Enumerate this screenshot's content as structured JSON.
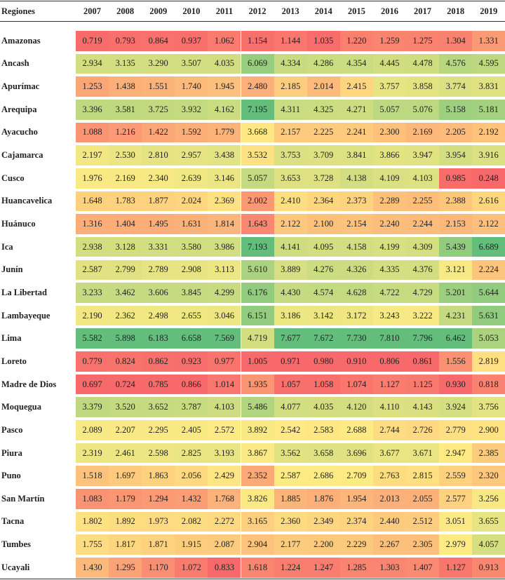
{
  "table": {
    "header": [
      "Regiones",
      "2007",
      "2008",
      "2009",
      "2010",
      "2011",
      "2012",
      "2013",
      "2014",
      "2015",
      "2016",
      "2017",
      "2018",
      "2019"
    ],
    "rows": [
      [
        "Amazonas",
        "0.719",
        "0.793",
        "0.864",
        "0.937",
        "1.062",
        "1.154",
        "1.144",
        "1.035",
        "1.220",
        "1.259",
        "1.275",
        "1.304",
        "1.331"
      ],
      [
        "Ancash",
        "2.934",
        "3.135",
        "3.290",
        "3.507",
        "4.035",
        "6.069",
        "4.334",
        "4.286",
        "4.354",
        "4.445",
        "4.478",
        "4.576",
        "4.595"
      ],
      [
        "Apurímac",
        "1.253",
        "1.438",
        "1.551",
        "1.740",
        "1.945",
        "2.480",
        "2.185",
        "2.014",
        "2.415",
        "3.757",
        "3.858",
        "3.774",
        "3.831"
      ],
      [
        "Arequipa",
        "3.396",
        "3.581",
        "3.725",
        "3.932",
        "4.162",
        "7.195",
        "4.311",
        "4.325",
        "4.271",
        "5.057",
        "5.076",
        "5.158",
        "5.181"
      ],
      [
        "Ayacucho",
        "1.088",
        "1.216",
        "1.422",
        "1.592",
        "1.779",
        "3.668",
        "2.157",
        "2.225",
        "2.241",
        "2.300",
        "2.169",
        "2.205",
        "2.192"
      ],
      [
        "Cajamarca",
        "2.197",
        "2.530",
        "2.810",
        "2.957",
        "3.438",
        "3.532",
        "3.753",
        "3.709",
        "3.841",
        "3.866",
        "3.947",
        "3.954",
        "3.916"
      ],
      [
        "Cusco",
        "1.976",
        "2.169",
        "2.340",
        "2.639",
        "3.146",
        "5.057",
        "3.653",
        "3.728",
        "4.138",
        "4.109",
        "4.103",
        "0.985",
        "0.248"
      ],
      [
        "Huancavelica",
        "1.648",
        "1.783",
        "1.877",
        "2.024",
        "2.369",
        "2.002",
        "2.410",
        "2.364",
        "2.373",
        "2.289",
        "2.255",
        "2.388",
        "2.616"
      ],
      [
        "Huánuco",
        "1.316",
        "1.404",
        "1.495",
        "1.631",
        "1.814",
        "1.643",
        "2.122",
        "2.100",
        "2.154",
        "2.240",
        "2.244",
        "2.153",
        "2.122"
      ],
      [
        "Ica",
        "2.938",
        "3.128",
        "3.331",
        "3.580",
        "3.986",
        "7.193",
        "4.141",
        "4.095",
        "4.158",
        "4.199",
        "4.309",
        "5.439",
        "6.689"
      ],
      [
        "Junín",
        "2.587",
        "2.799",
        "2.789",
        "2.908",
        "3.113",
        "5.610",
        "3.889",
        "4.276",
        "4.326",
        "4.335",
        "4.376",
        "3.121",
        "2.224"
      ],
      [
        "La Libertad",
        "3.233",
        "3.462",
        "3.606",
        "3.845",
        "4.299",
        "6.176",
        "4.430",
        "4.574",
        "4.628",
        "4.722",
        "4.729",
        "5.201",
        "5.644"
      ],
      [
        "Lambayeque",
        "2.190",
        "2.362",
        "2.498",
        "2.655",
        "3.046",
        "6.151",
        "3.186",
        "3.142",
        "3.172",
        "3.243",
        "3.222",
        "4.231",
        "5.631"
      ],
      [
        "Lima",
        "5.582",
        "5.898",
        "6.183",
        "6.658",
        "7.569",
        "4.719",
        "7.677",
        "7.672",
        "7.730",
        "7.810",
        "7.796",
        "6.462",
        "5.053"
      ],
      [
        "Loreto",
        "0.779",
        "0.824",
        "0.862",
        "0.923",
        "0.977",
        "1.005",
        "0.971",
        "0.980",
        "0.910",
        "0.806",
        "0.861",
        "1.556",
        "2.819"
      ],
      [
        "Madre de Dios",
        "0.697",
        "0.724",
        "0.785",
        "0.866",
        "1.014",
        "1.935",
        "1.057",
        "1.058",
        "1.074",
        "1.127",
        "1.125",
        "0.930",
        "0.818"
      ],
      [
        "Moquegua",
        "3.379",
        "3.520",
        "3.652",
        "3.787",
        "4.103",
        "5.486",
        "4.077",
        "4.035",
        "4.120",
        "4.110",
        "4.143",
        "3.924",
        "3.756"
      ],
      [
        "Pasco",
        "2.089",
        "2.207",
        "2.295",
        "2.405",
        "2.572",
        "3.892",
        "2.542",
        "2.583",
        "2.688",
        "2.744",
        "2.726",
        "2.779",
        "2.900"
      ],
      [
        "Piura",
        "2.319",
        "2.461",
        "2.598",
        "2.825",
        "3.193",
        "3.867",
        "3.562",
        "3.658",
        "3.696",
        "3.677",
        "3.671",
        "2.947",
        "2.385"
      ],
      [
        "Puno",
        "1.518",
        "1.697",
        "1.863",
        "2.056",
        "2.429",
        "2.352",
        "2.587",
        "2.686",
        "2.709",
        "2.763",
        "2.815",
        "2.559",
        "2.320"
      ],
      [
        "San Martín",
        "1.083",
        "1.179",
        "1.294",
        "1.432",
        "1.768",
        "3.826",
        "1.885",
        "1.876",
        "1.954",
        "2.013",
        "2.055",
        "2.577",
        "3.256"
      ],
      [
        "Tacna",
        "1.802",
        "1.892",
        "1.973",
        "2.082",
        "2.272",
        "3.165",
        "2.360",
        "2.349",
        "2.374",
        "2.440",
        "2.512",
        "3.051",
        "3.655"
      ],
      [
        "Tumbes",
        "1.755",
        "1.817",
        "1.871",
        "1.915",
        "2.087",
        "2.904",
        "2.177",
        "2.200",
        "2.229",
        "2.267",
        "2.305",
        "2.979",
        "4.057"
      ],
      [
        "Ucayali",
        "1.430",
        "1.295",
        "1.170",
        "1.072",
        "0.833",
        "1.618",
        "1.224",
        "1.247",
        "1.285",
        "1.303",
        "1.407",
        "1.127",
        "0.913"
      ]
    ]
  }
}
